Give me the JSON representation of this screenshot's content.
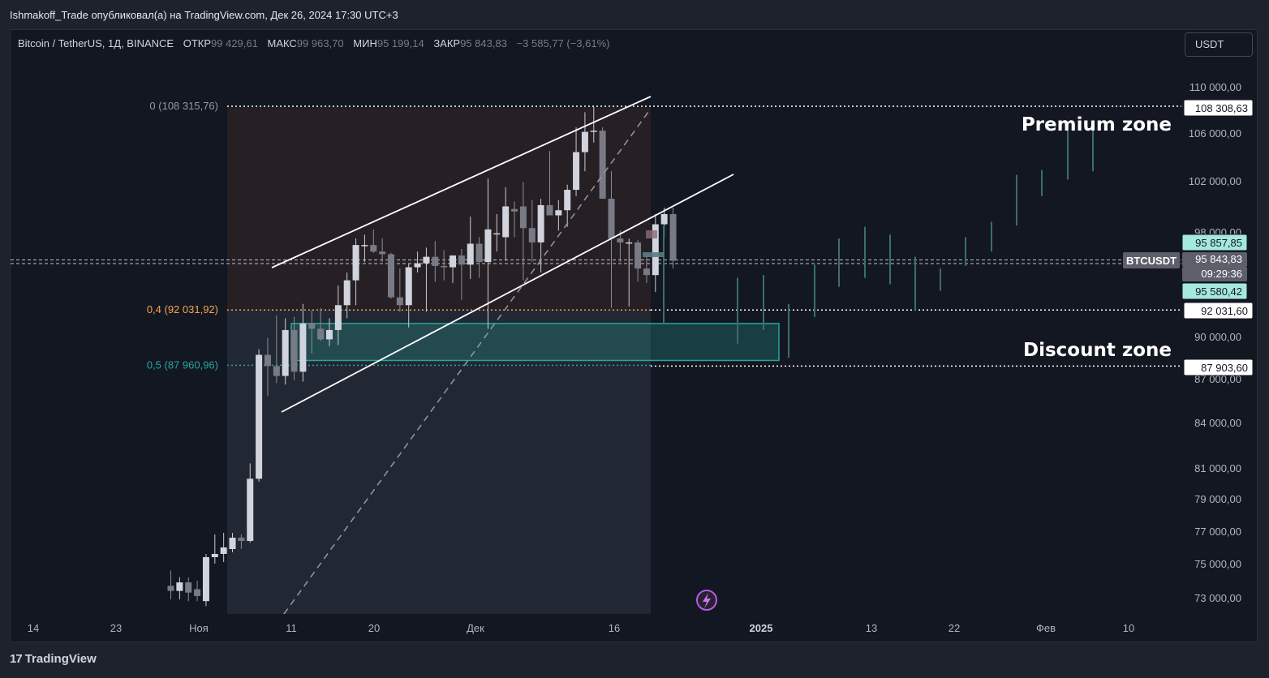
{
  "header": {
    "publish_text": "Ishmakoff_Trade опубликовал(а) на TradingView.com, Дек 26, 2024 17:30 UTC+3"
  },
  "legend": {
    "symbol": "Bitcoin / TetherUS, 1Д, BINANCE",
    "open_label": "ОТКР",
    "open": "99 429,61",
    "high_label": "МАКС",
    "high": "99 963,70",
    "low_label": "МИН",
    "low": "95 199,14",
    "close_label": "ЗАКР",
    "close": "95 843,83",
    "change": "−3 585,77 (−3,61%)"
  },
  "currency_button": "USDT",
  "footer": {
    "brand": "TradingView"
  },
  "colors": {
    "fib_top": "#9598a1",
    "fib_04": "#f7a44f",
    "fib_05": "#26a69a",
    "zone": "#26a69a",
    "candle": "#b2b5be"
  },
  "chart_data": {
    "type": "candlestick",
    "symbol": "BTCUSDT",
    "timeframe": "1Д",
    "y_axis_ticks": [
      "110 000,00",
      "106 000,00",
      "102 000,00",
      "98 000,00",
      "90 000,00",
      "87 000,00",
      "84 000,00",
      "81 000,00",
      "79 000,00",
      "77 000,00",
      "75 000,00",
      "73 000,00"
    ],
    "y_axis_values": [
      110000,
      106000,
      102000,
      98000,
      90000,
      87000,
      84000,
      81000,
      79000,
      77000,
      75000,
      73000
    ],
    "x_axis_labels": [
      "14",
      "23",
      "Ноя",
      "11",
      "20",
      "Дек",
      "16",
      "2025",
      "13",
      "22",
      "Фев",
      "10"
    ],
    "price_labels": [
      {
        "text": "108 308,63",
        "value": 108308.63,
        "style": "white"
      },
      {
        "text": "95 857,85",
        "value": 95857.85,
        "style": "teal"
      },
      {
        "text": "95 843,83",
        "value": 95843.83,
        "style": "gray"
      },
      {
        "text": "09:29:36",
        "value": 95843.83,
        "style": "gray-sub"
      },
      {
        "text": "95 580,42",
        "value": 95580.42,
        "style": "teal"
      },
      {
        "text": "92 031,60",
        "value": 92031.6,
        "style": "white"
      },
      {
        "text": "87 903,60",
        "value": 87903.6,
        "style": "white"
      }
    ],
    "symbol_tag": "BTCUSDT",
    "fib_levels": [
      {
        "label": "0 (108 315,76)",
        "value": 108315.76
      },
      {
        "label": "0,4 (92 031,92)",
        "value": 92031.92
      },
      {
        "label": "0,5 (87 960,96)",
        "value": 87960.96
      }
    ],
    "annotations": [
      "Premium zone",
      "Discount zone"
    ],
    "demand_zone": {
      "from": 88300,
      "to": 91000
    },
    "candles": [
      {
        "o": 73700,
        "h": 74600,
        "l": 72900,
        "c": 73400
      },
      {
        "o": 73400,
        "h": 74200,
        "l": 72900,
        "c": 73900
      },
      {
        "o": 73900,
        "h": 74200,
        "l": 72800,
        "c": 73300
      },
      {
        "o": 73500,
        "h": 74000,
        "l": 72800,
        "c": 73100
      },
      {
        "o": 72800,
        "h": 75600,
        "l": 72500,
        "c": 75400
      },
      {
        "o": 75400,
        "h": 76800,
        "l": 75000,
        "c": 75600
      },
      {
        "o": 75600,
        "h": 76900,
        "l": 75100,
        "c": 76000
      },
      {
        "o": 75900,
        "h": 76900,
        "l": 75700,
        "c": 76600
      },
      {
        "o": 76600,
        "h": 76800,
        "l": 75900,
        "c": 76400
      },
      {
        "o": 76400,
        "h": 81300,
        "l": 76300,
        "c": 80300
      },
      {
        "o": 80300,
        "h": 89100,
        "l": 80100,
        "c": 88700
      },
      {
        "o": 88700,
        "h": 89900,
        "l": 85800,
        "c": 87900
      },
      {
        "o": 87900,
        "h": 91600,
        "l": 86700,
        "c": 87200
      },
      {
        "o": 87200,
        "h": 91400,
        "l": 86600,
        "c": 90500
      },
      {
        "o": 90500,
        "h": 91500,
        "l": 86900,
        "c": 87500
      },
      {
        "o": 87500,
        "h": 92500,
        "l": 86800,
        "c": 91000
      },
      {
        "o": 91000,
        "h": 92000,
        "l": 88800,
        "c": 90600
      },
      {
        "o": 90600,
        "h": 92200,
        "l": 89700,
        "c": 89800
      },
      {
        "o": 89800,
        "h": 91400,
        "l": 89300,
        "c": 90500
      },
      {
        "o": 90500,
        "h": 93900,
        "l": 89400,
        "c": 92400
      },
      {
        "o": 92400,
        "h": 94900,
        "l": 91400,
        "c": 94300
      },
      {
        "o": 94300,
        "h": 97500,
        "l": 92400,
        "c": 97000
      },
      {
        "o": 97000,
        "h": 97800,
        "l": 95700,
        "c": 97000
      },
      {
        "o": 97000,
        "h": 98200,
        "l": 96400,
        "c": 96500
      },
      {
        "o": 96500,
        "h": 97500,
        "l": 95700,
        "c": 96300
      },
      {
        "o": 96300,
        "h": 96400,
        "l": 92900,
        "c": 93000
      },
      {
        "o": 93000,
        "h": 95200,
        "l": 91900,
        "c": 92400
      },
      {
        "o": 92400,
        "h": 95600,
        "l": 90700,
        "c": 95300
      },
      {
        "o": 95300,
        "h": 96500,
        "l": 94900,
        "c": 95600
      },
      {
        "o": 95600,
        "h": 96800,
        "l": 91900,
        "c": 96100
      },
      {
        "o": 96100,
        "h": 97300,
        "l": 94200,
        "c": 95400
      },
      {
        "o": 95400,
        "h": 96600,
        "l": 94300,
        "c": 95300
      },
      {
        "o": 95300,
        "h": 96200,
        "l": 94100,
        "c": 96200
      },
      {
        "o": 96200,
        "h": 96700,
        "l": 92800,
        "c": 95500
      },
      {
        "o": 95500,
        "h": 99200,
        "l": 94400,
        "c": 97100
      },
      {
        "o": 97100,
        "h": 97600,
        "l": 94500,
        "c": 95700
      },
      {
        "o": 95700,
        "h": 102200,
        "l": 90600,
        "c": 98200
      },
      {
        "o": 97900,
        "h": 99400,
        "l": 96500,
        "c": 97900
      },
      {
        "o": 97600,
        "h": 101500,
        "l": 95800,
        "c": 100000
      },
      {
        "o": 99800,
        "h": 100400,
        "l": 97600,
        "c": 99600
      },
      {
        "o": 100000,
        "h": 101900,
        "l": 94300,
        "c": 98300
      },
      {
        "o": 98300,
        "h": 100500,
        "l": 95700,
        "c": 97200
      },
      {
        "o": 97200,
        "h": 100600,
        "l": 94900,
        "c": 100100
      },
      {
        "o": 100100,
        "h": 104500,
        "l": 99300,
        "c": 99300
      },
      {
        "o": 99300,
        "h": 100500,
        "l": 98100,
        "c": 99700
      },
      {
        "o": 99700,
        "h": 101700,
        "l": 98400,
        "c": 101300
      },
      {
        "o": 101300,
        "h": 106500,
        "l": 100800,
        "c": 104400
      },
      {
        "o": 104400,
        "h": 107800,
        "l": 102800,
        "c": 106100
      },
      {
        "o": 106100,
        "h": 108300,
        "l": 105200,
        "c": 106200
      },
      {
        "o": 106200,
        "h": 106500,
        "l": 100600,
        "c": 100600
      },
      {
        "o": 100600,
        "h": 102800,
        "l": 92200,
        "c": 97500
      },
      {
        "o": 97500,
        "h": 98100,
        "l": 95700,
        "c": 97200
      },
      {
        "o": 97200,
        "h": 97500,
        "l": 92300,
        "c": 97200
      },
      {
        "o": 97200,
        "h": 97400,
        "l": 94200,
        "c": 95200
      },
      {
        "o": 95200,
        "h": 96400,
        "l": 94100,
        "c": 94700
      },
      {
        "o": 94700,
        "h": 99400,
        "l": 93400,
        "c": 98600
      },
      {
        "o": 98600,
        "h": 99900,
        "l": 97600,
        "c": 99400
      },
      {
        "o": 99400,
        "h": 99900,
        "l": 95200,
        "c": 95800
      }
    ]
  }
}
